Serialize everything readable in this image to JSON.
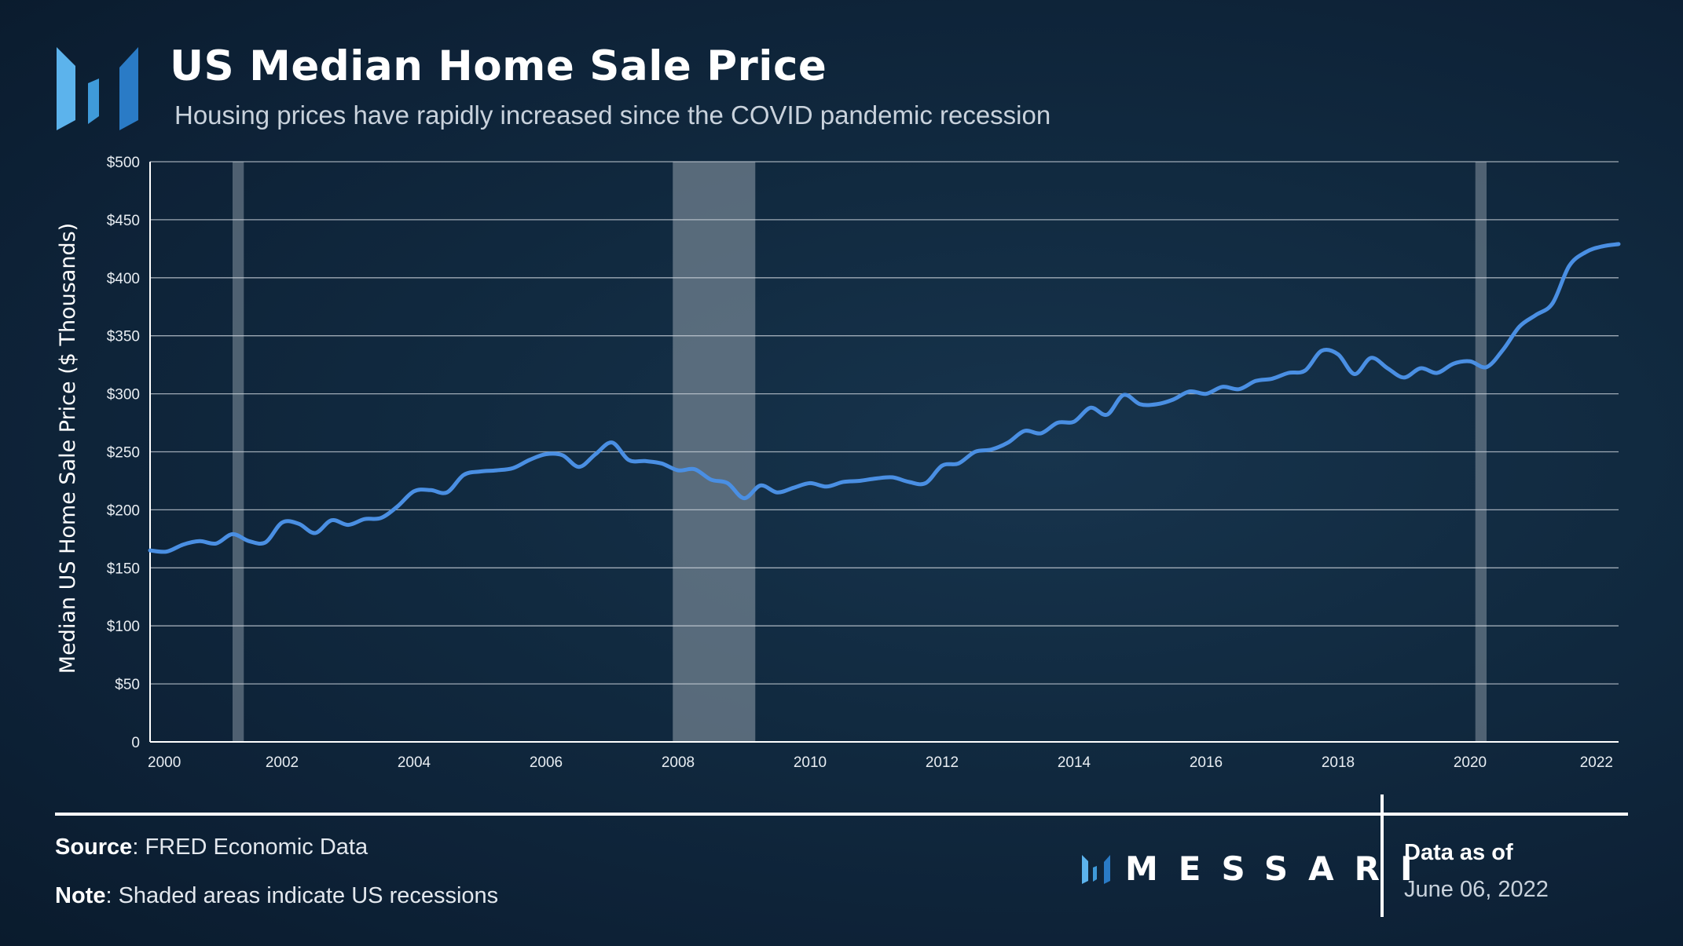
{
  "header": {
    "title": "US Median Home Sale Price",
    "subtitle": "Housing prices have rapidly increased since the COVID pandemic recession"
  },
  "colors": {
    "line": "#4a8fe3",
    "recession": "#8593a0",
    "grid": "#cfd6de",
    "logo_light": "#5cb3ec",
    "logo_dark": "#2a7bc6"
  },
  "footer": {
    "source_label": "Source",
    "source_text": ": FRED Economic Data",
    "note_label": "Note",
    "note_text": ": Shaded areas indicate US recessions",
    "brand": "MESSARI",
    "data_as_of_label": "Data as of",
    "data_as_of_date": "June 06, 2022"
  },
  "chart_data": {
    "type": "line",
    "title": "US Median Home Sale Price",
    "subtitle": "Housing prices have rapidly increased since the COVID pandemic recession",
    "xlabel": "",
    "ylabel": "Median US Home Sale Price ($ Thousands)",
    "xlim": [
      2000,
      2022.25
    ],
    "ylim": [
      0,
      500
    ],
    "grid": "horizontal",
    "x_ticks": [
      2000,
      2002,
      2004,
      2006,
      2008,
      2010,
      2012,
      2014,
      2016,
      2018,
      2020,
      2022
    ],
    "x_tick_labels": [
      "2000",
      "2002",
      "2004",
      "2006",
      "2008",
      "2010",
      "2012",
      "2014",
      "2016",
      "2018",
      "2020",
      "2022"
    ],
    "y_ticks": [
      0,
      50,
      100,
      150,
      200,
      250,
      300,
      350,
      400,
      450,
      500
    ],
    "y_tick_labels": [
      "0",
      "$50",
      "$100",
      "$150",
      "$200",
      "$250",
      "$300",
      "$350",
      "$400",
      "$450",
      "$500"
    ],
    "recessions": [
      {
        "start": 2001.25,
        "end": 2001.42
      },
      {
        "start": 2007.92,
        "end": 2009.17
      },
      {
        "start": 2020.08,
        "end": 2020.25
      }
    ],
    "series": [
      {
        "name": "Median US Home Sale Price",
        "x": [
          2000.0,
          2000.25,
          2000.5,
          2000.75,
          2001.0,
          2001.25,
          2001.5,
          2001.75,
          2002.0,
          2002.25,
          2002.5,
          2002.75,
          2003.0,
          2003.25,
          2003.5,
          2003.75,
          2004.0,
          2004.25,
          2004.5,
          2004.75,
          2005.0,
          2005.25,
          2005.5,
          2005.75,
          2006.0,
          2006.25,
          2006.5,
          2006.75,
          2007.0,
          2007.25,
          2007.5,
          2007.75,
          2008.0,
          2008.25,
          2008.5,
          2008.75,
          2009.0,
          2009.25,
          2009.5,
          2009.75,
          2010.0,
          2010.25,
          2010.5,
          2010.75,
          2011.0,
          2011.25,
          2011.5,
          2011.75,
          2012.0,
          2012.25,
          2012.5,
          2012.75,
          2013.0,
          2013.25,
          2013.5,
          2013.75,
          2014.0,
          2014.25,
          2014.5,
          2014.75,
          2015.0,
          2015.25,
          2015.5,
          2015.75,
          2016.0,
          2016.25,
          2016.5,
          2016.75,
          2017.0,
          2017.25,
          2017.5,
          2017.75,
          2018.0,
          2018.25,
          2018.5,
          2018.75,
          2019.0,
          2019.25,
          2019.5,
          2019.75,
          2020.0,
          2020.25,
          2020.5,
          2020.75,
          2021.0,
          2021.25,
          2021.5,
          2021.75,
          2022.0,
          2022.25
        ],
        "values": [
          165,
          164,
          170,
          173,
          171,
          179,
          173,
          172,
          189,
          188,
          180,
          191,
          187,
          192,
          193,
          203,
          216,
          217,
          215,
          230,
          233,
          234,
          236,
          243,
          248,
          247,
          237,
          248,
          258,
          243,
          242,
          240,
          234,
          235,
          226,
          223,
          210,
          221,
          215,
          219,
          223,
          220,
          224,
          225,
          227,
          228,
          224,
          223,
          238,
          240,
          250,
          252,
          258,
          268,
          266,
          275,
          276,
          288,
          282,
          299,
          291,
          291,
          295,
          302,
          300,
          306,
          304,
          311,
          313,
          318,
          320,
          337,
          334,
          317,
          331,
          322,
          314,
          322,
          318,
          326,
          328,
          323,
          338,
          358,
          368,
          378,
          410,
          422,
          427,
          429
        ]
      }
    ]
  }
}
